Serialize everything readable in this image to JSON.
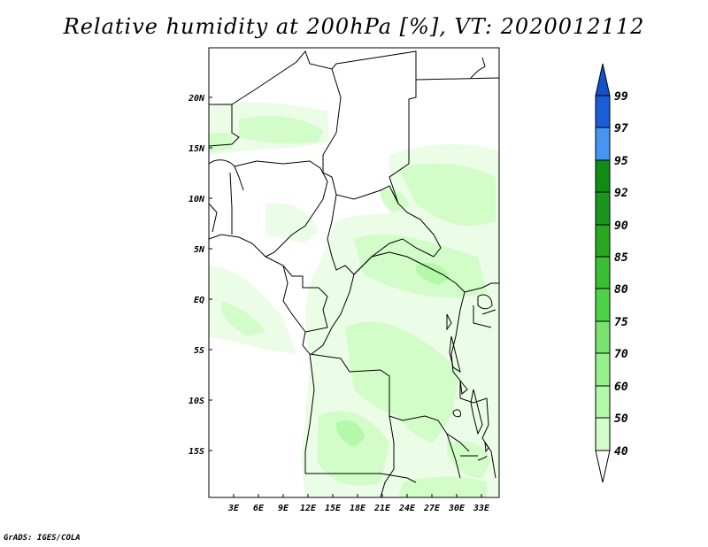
{
  "title": "Relative humidity at 200hPa [%], VT: 2020012112",
  "footer": "GrADS: IGES/COLA",
  "map": {
    "region": "Central and Southern Africa",
    "lat_labels": [
      "20N",
      "15N",
      "10N",
      "5N",
      "EQ",
      "5S",
      "10S",
      "15S"
    ],
    "lon_labels": [
      "3E",
      "6E",
      "9E",
      "12E",
      "15E",
      "18E",
      "21E",
      "24E",
      "27E",
      "30E",
      "33E"
    ]
  },
  "colorbar": {
    "labels": [
      "99",
      "97",
      "95",
      "92",
      "90",
      "85",
      "80",
      "75",
      "70",
      "60",
      "50",
      "40"
    ],
    "colors": [
      "#1a5ed6",
      "#2878e6",
      "#4496f0",
      "#0f8c14",
      "#28a81e",
      "#3cbe32",
      "#50d246",
      "#78e46e",
      "#96f08c",
      "#b4f8aa",
      "#d2fcc8",
      "#ebfde6"
    ],
    "min_arrow_color": "#ffffff",
    "max_arrow_color": "#1450c8"
  },
  "chart_data": {
    "type": "heatmap",
    "variable": "Relative humidity",
    "level": "200hPa",
    "units": "%",
    "valid_time": "2020012112",
    "contour_levels": [
      40,
      50,
      60,
      70,
      75,
      80,
      85,
      90,
      92,
      95,
      97,
      99
    ],
    "lon_range": [
      0,
      34
    ],
    "lat_range": [
      -20,
      24
    ],
    "observed_max_band": "50-60"
  }
}
